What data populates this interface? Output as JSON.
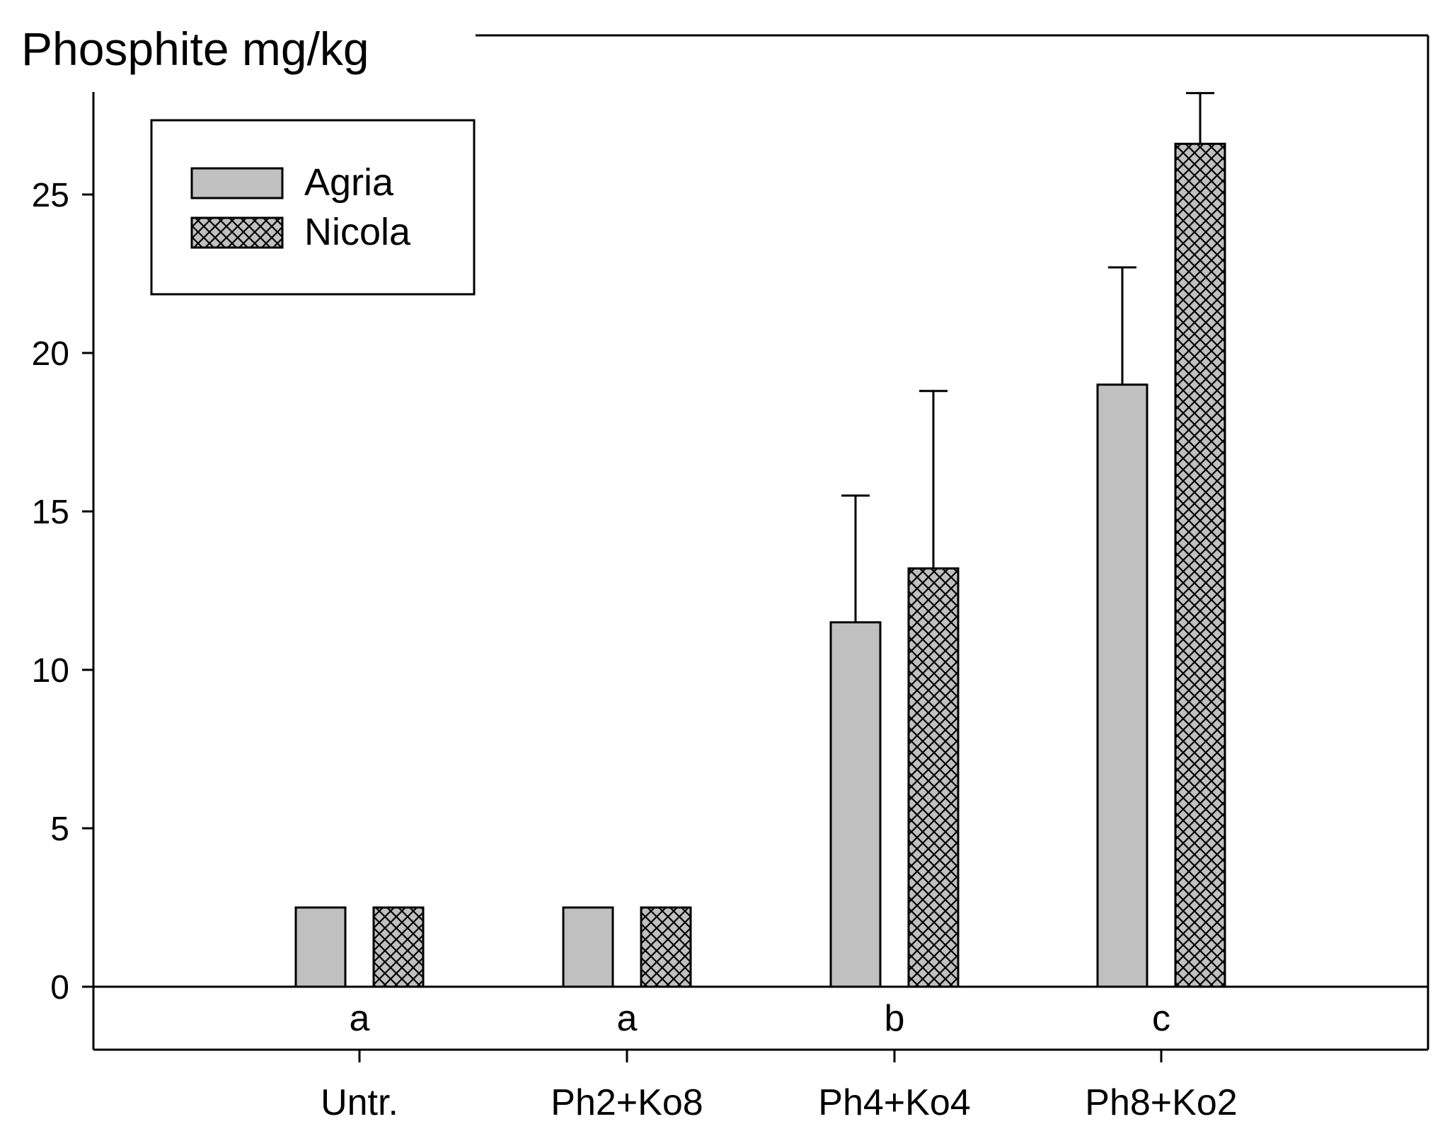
{
  "chart_data": {
    "type": "bar",
    "title": "Phosphite mg/kg",
    "ylabel": "",
    "xlabel": "",
    "ylim": [
      0,
      28
    ],
    "yticks": [
      0,
      5,
      10,
      15,
      20,
      25
    ],
    "categories": [
      "Untr.",
      "Ph2+Ko8",
      "Ph4+Ko4",
      "Ph8+Ko2"
    ],
    "group_letters": [
      "a",
      "a",
      "b",
      "c"
    ],
    "series": [
      {
        "name": "Agria",
        "fill": "#c0c0c0",
        "pattern": "solid",
        "values": [
          2.5,
          2.5,
          11.5,
          19.0
        ],
        "errors": [
          0,
          0,
          4.0,
          3.7
        ]
      },
      {
        "name": "Nicola",
        "fill": "#c0c0c0",
        "pattern": "crosshatch",
        "values": [
          2.5,
          2.5,
          13.2,
          26.6
        ],
        "errors": [
          0,
          0,
          5.6,
          1.6
        ]
      }
    ],
    "legend": {
      "position": "top-left"
    },
    "grid": false
  }
}
